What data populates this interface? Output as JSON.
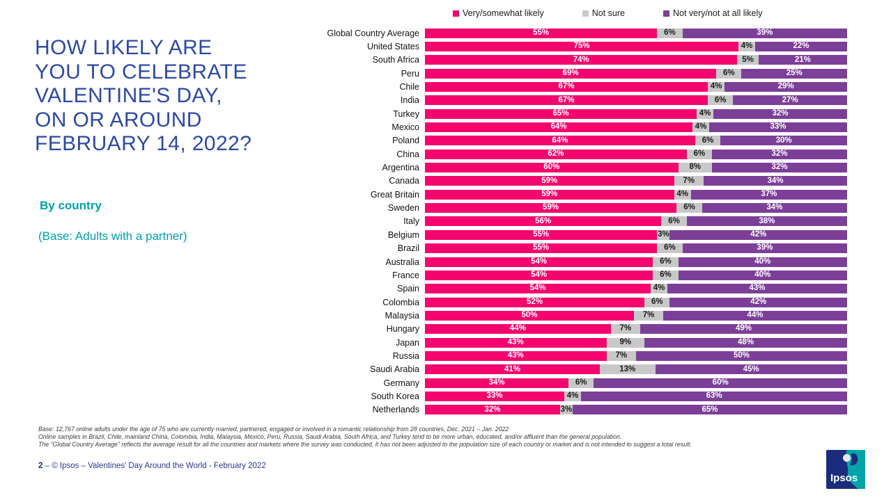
{
  "slide": {
    "title_lines": [
      "HOW LIKELY ARE",
      "YOU TO CELEBRATE",
      "VALENTINE'S DAY,",
      "ON OR AROUND",
      "FEBRUARY 14, 2022?"
    ],
    "subtitle": "By country",
    "base_note": "(Base: Adults with a partner)"
  },
  "legend": {
    "items": [
      {
        "label": "Very/somewhat likely",
        "color": "#F4056E"
      },
      {
        "label": "Not sure",
        "color": "#C8C8C8"
      },
      {
        "label": "Not very/not at all likely",
        "color": "#7C3F98"
      }
    ]
  },
  "chart_data": {
    "type": "bar",
    "orientation": "horizontal",
    "stacked": true,
    "normalized_to_full_width": true,
    "value_suffix": "%",
    "xlim": [
      0,
      100
    ],
    "legend_position": "top",
    "categories": [
      "Global Country Average",
      "United States",
      "South Africa",
      "Peru",
      "Chile",
      "India",
      "Turkey",
      "Mexico",
      "Poland",
      "China",
      "Argentina",
      "Canada",
      "Great Britain",
      "Sweden",
      "Italy",
      "Belgium",
      "Brazil",
      "Australia",
      "France",
      "Spain",
      "Colombia",
      "Malaysia",
      "Hungary",
      "Japan",
      "Russia",
      "Saudi Arabia",
      "Germany",
      "South Korea",
      "Netherlands"
    ],
    "series": [
      {
        "name": "Very/somewhat likely",
        "color": "#F4056E",
        "label_color": "#FFFFFF",
        "values": [
          55,
          75,
          74,
          69,
          67,
          67,
          65,
          64,
          64,
          62,
          60,
          59,
          59,
          59,
          56,
          55,
          55,
          54,
          54,
          54,
          52,
          50,
          44,
          43,
          43,
          41,
          34,
          33,
          32
        ]
      },
      {
        "name": "Not sure",
        "color": "#C8C8C8",
        "label_color": "#1A1A1A",
        "values": [
          6,
          4,
          5,
          6,
          4,
          6,
          4,
          4,
          6,
          6,
          8,
          7,
          4,
          6,
          6,
          3,
          6,
          6,
          6,
          4,
          6,
          7,
          7,
          9,
          7,
          13,
          6,
          4,
          3
        ]
      },
      {
        "name": "Not very/not at all likely",
        "color": "#7C3F98",
        "label_color": "#FFFFFF",
        "values": [
          39,
          22,
          21,
          25,
          29,
          27,
          32,
          33,
          30,
          32,
          32,
          34,
          37,
          34,
          38,
          42,
          39,
          40,
          40,
          43,
          42,
          44,
          49,
          48,
          50,
          45,
          60,
          63,
          65
        ]
      }
    ]
  },
  "footnotes": [
    "Base: 12,767 online adults under the age of 75 who are currently married, partnered, engaged or involved in a romantic relationship from 28 countries, Dec. 2021 – Jan. 2022",
    "Online samples in Brazil, Chile, mainland China, Colombia, India, Malaysia, Mexico, Peru, Russia, Saudi Arabia, South Africa, and Turkey tend to be more urban, educated, and/or affluent than the general population.",
    "The “Global Country Average” reflects the average result for all the countries and markets where the survey was conducted. It has not been adjusted to the population size of each country or market and is not intended to suggest a total result."
  ],
  "footer": {
    "page_number": "2",
    "separator": "–",
    "text": "© Ipsos – Valentines' Day Around the World - February 2022"
  },
  "logo": {
    "text": "Ipsos",
    "navy": "#1B2C7E",
    "teal": "#00A3A8"
  }
}
